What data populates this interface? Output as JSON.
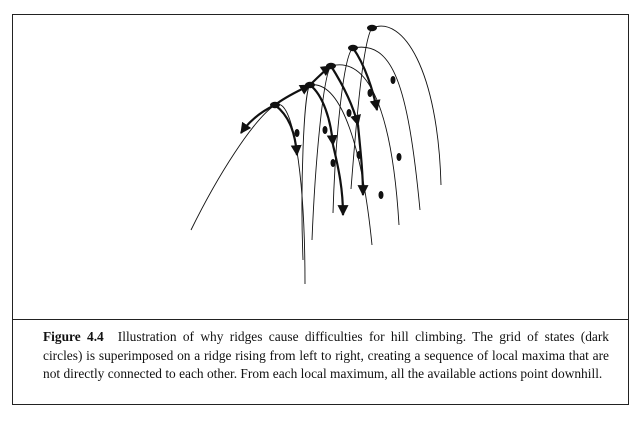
{
  "figure": {
    "label": "Figure 4.4",
    "caption": "Illustration of why ridges cause difficulties for hill climbing. The grid of states (dark circles) is superimposed on a ridge rising from left to right, creating a sequence of local maxima that are not directly connected to each other. From each local maximum, all the available actions point downhill."
  },
  "diagram": {
    "local_maxima_count": 5,
    "colors": {
      "curve": "#111111",
      "state": "#111111"
    }
  }
}
